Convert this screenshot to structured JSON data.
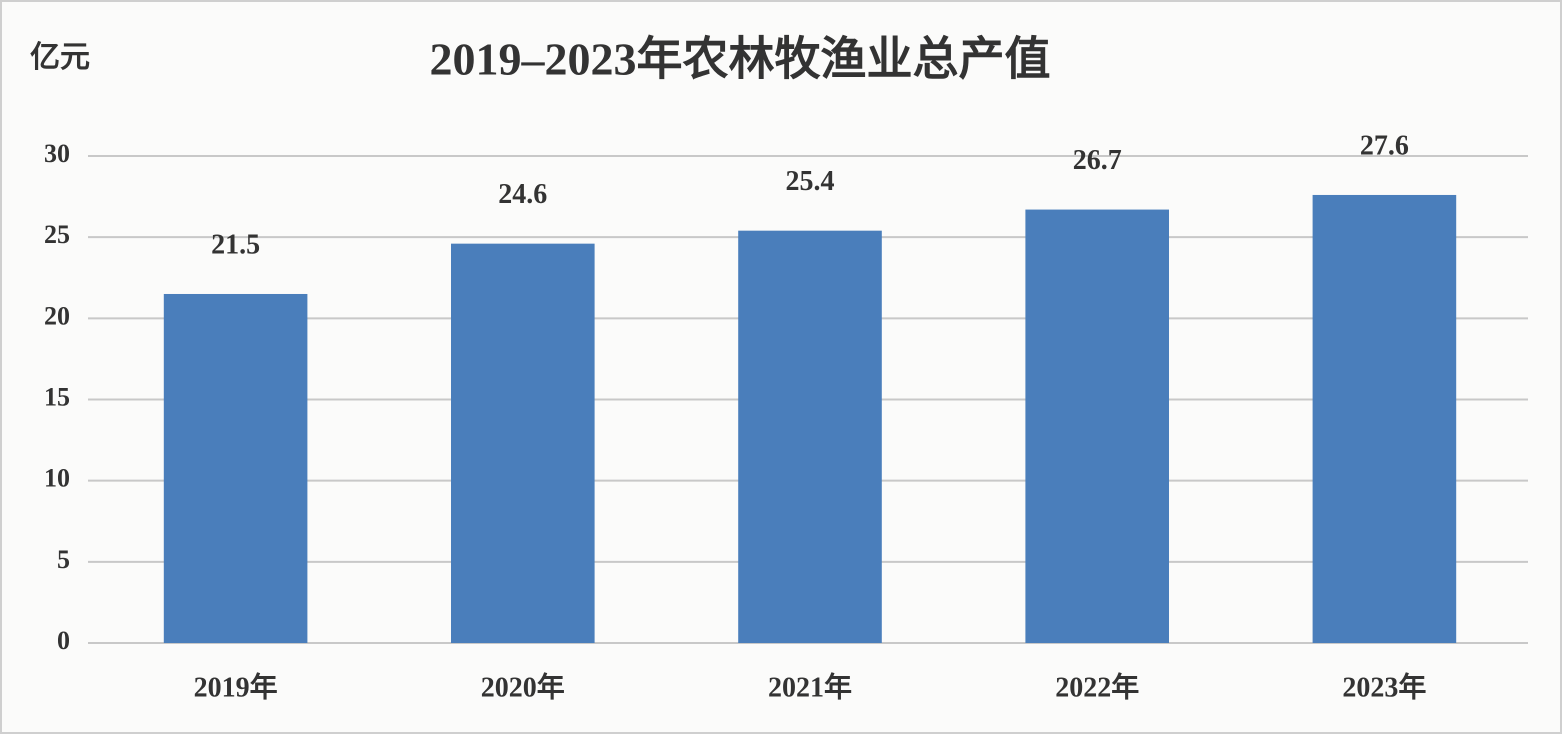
{
  "chart_data": {
    "type": "bar",
    "title": "2019–2023年农林牧渔业总产值",
    "y_label": "亿元",
    "categories": [
      "2019年",
      "2020年",
      "2021年",
      "2022年",
      "2023年"
    ],
    "values": [
      21.5,
      24.6,
      25.4,
      26.7,
      27.6
    ],
    "color": "#4a7ebb",
    "ylim": [
      0,
      30
    ],
    "yticks": [
      0,
      5,
      10,
      15,
      20,
      25,
      30
    ],
    "grid": true
  }
}
